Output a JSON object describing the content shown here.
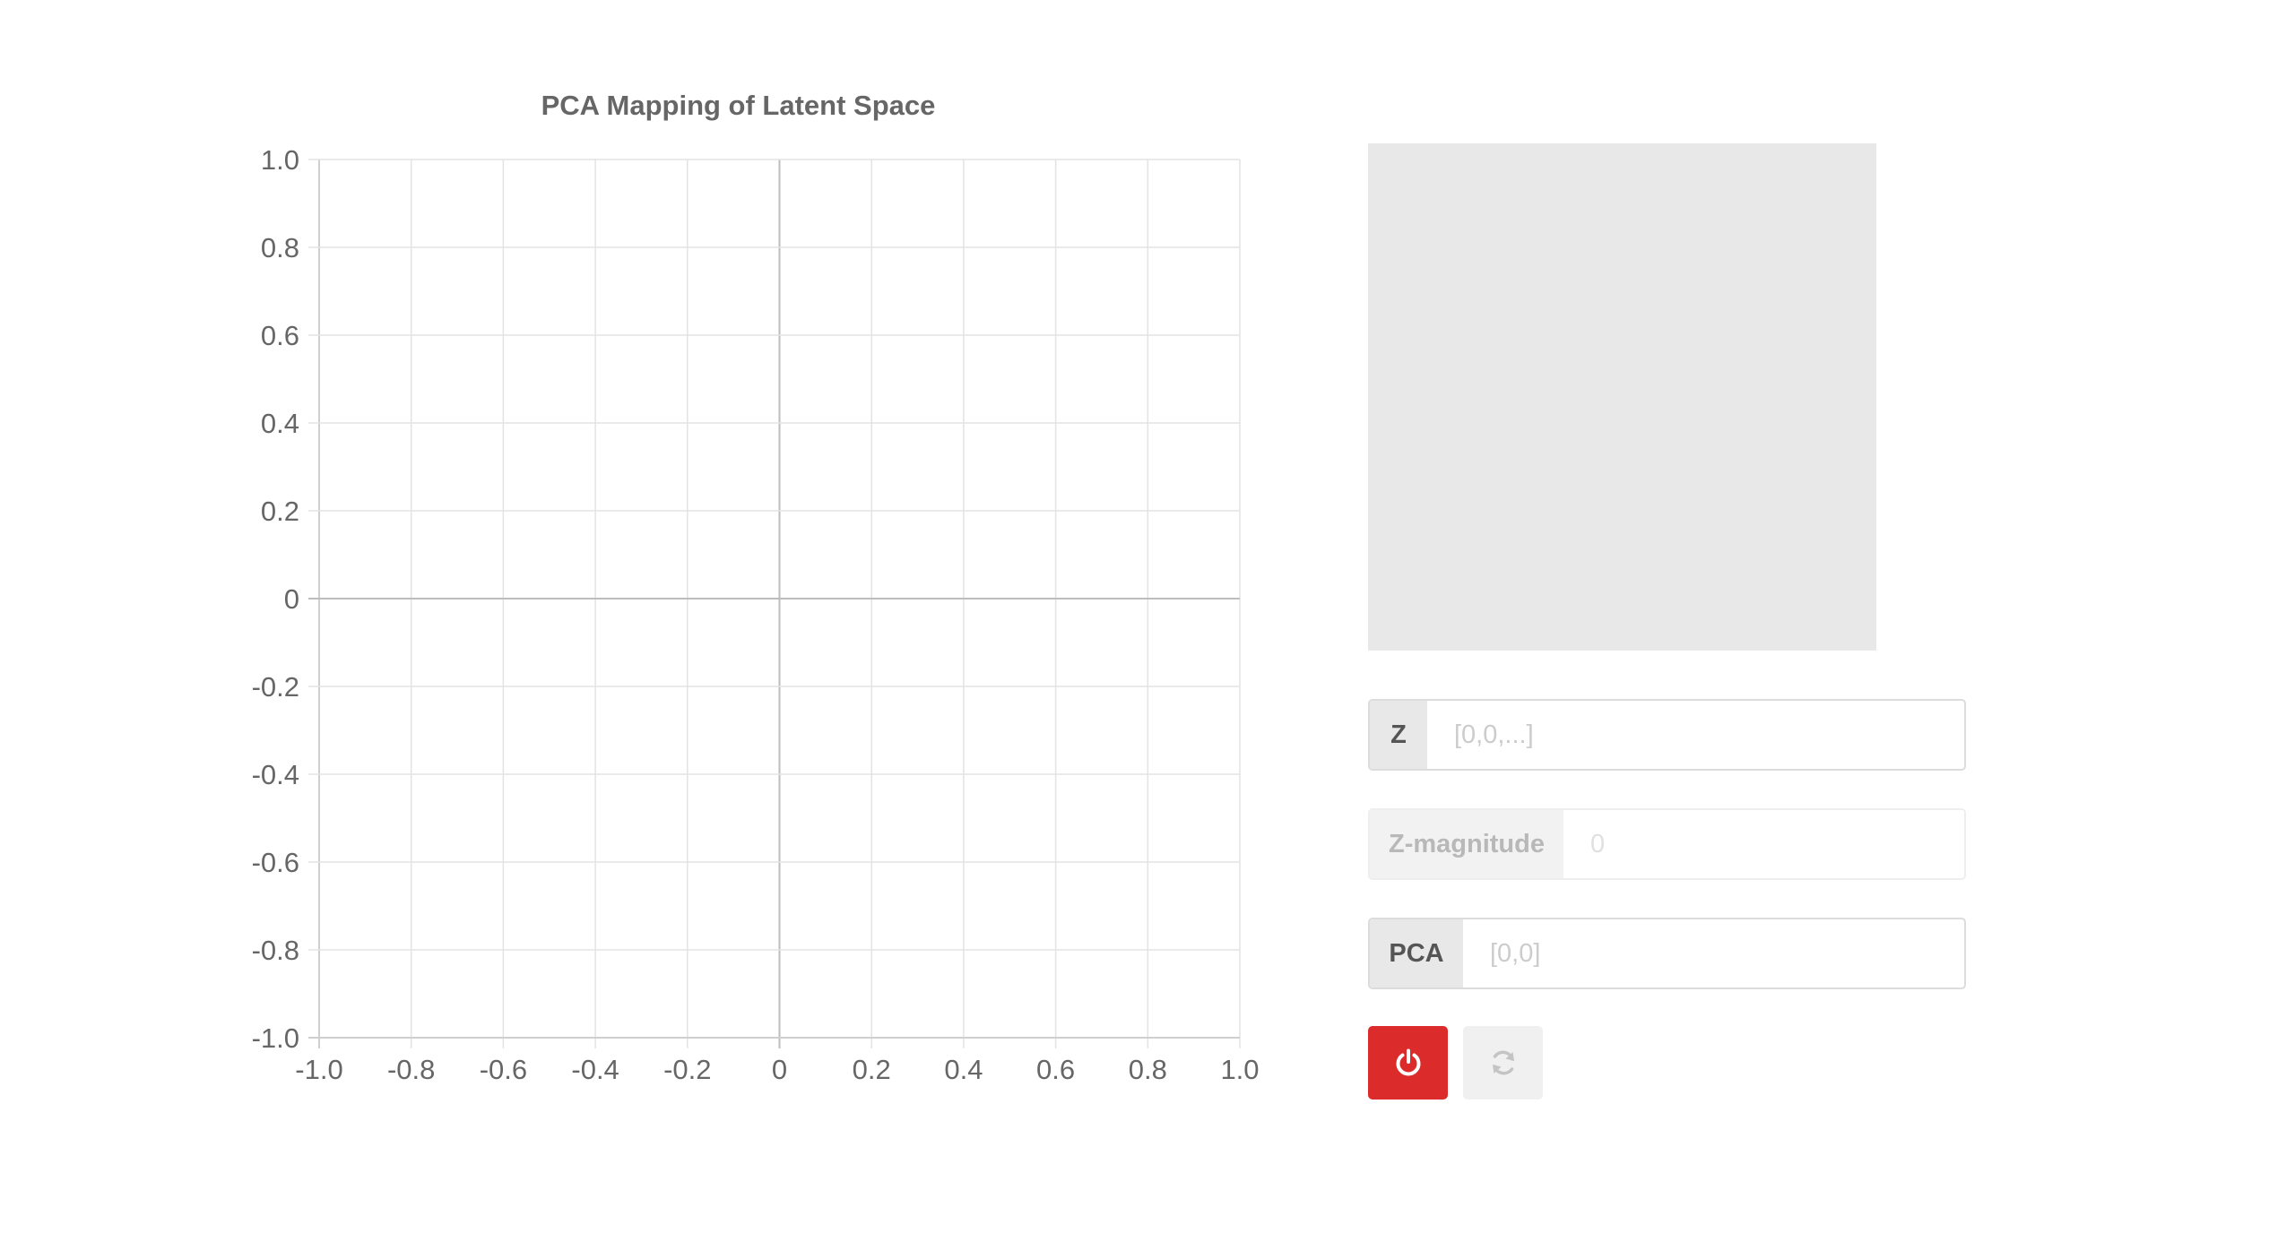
{
  "chart_data": {
    "type": "scatter",
    "title": "PCA Mapping of Latent Space",
    "xlabel": "",
    "ylabel": "",
    "xlim": [
      -1.0,
      1.0
    ],
    "ylim": [
      -1.0,
      1.0
    ],
    "x_ticks": [
      "-1.0",
      "-0.8",
      "-0.6",
      "-0.4",
      "-0.2",
      "0",
      "0.2",
      "0.4",
      "0.6",
      "0.8",
      "1.0"
    ],
    "y_ticks": [
      "1.0",
      "0.8",
      "0.6",
      "0.4",
      "0.2",
      "0",
      "-0.2",
      "-0.4",
      "-0.6",
      "-0.8",
      "-1.0"
    ],
    "grid": true,
    "series": [
      {
        "points": []
      }
    ]
  },
  "controls": {
    "z": {
      "label": "Z",
      "placeholder": "[0,0,...]"
    },
    "z_magnitude": {
      "label": "Z-magnitude",
      "placeholder": "0"
    },
    "pca": {
      "label": "PCA",
      "placeholder": "[0,0]"
    },
    "power_button": {
      "icon": "power-icon",
      "color": "#dc2b2b"
    },
    "refresh_button": {
      "icon": "refresh-icon",
      "disabled": true
    }
  }
}
